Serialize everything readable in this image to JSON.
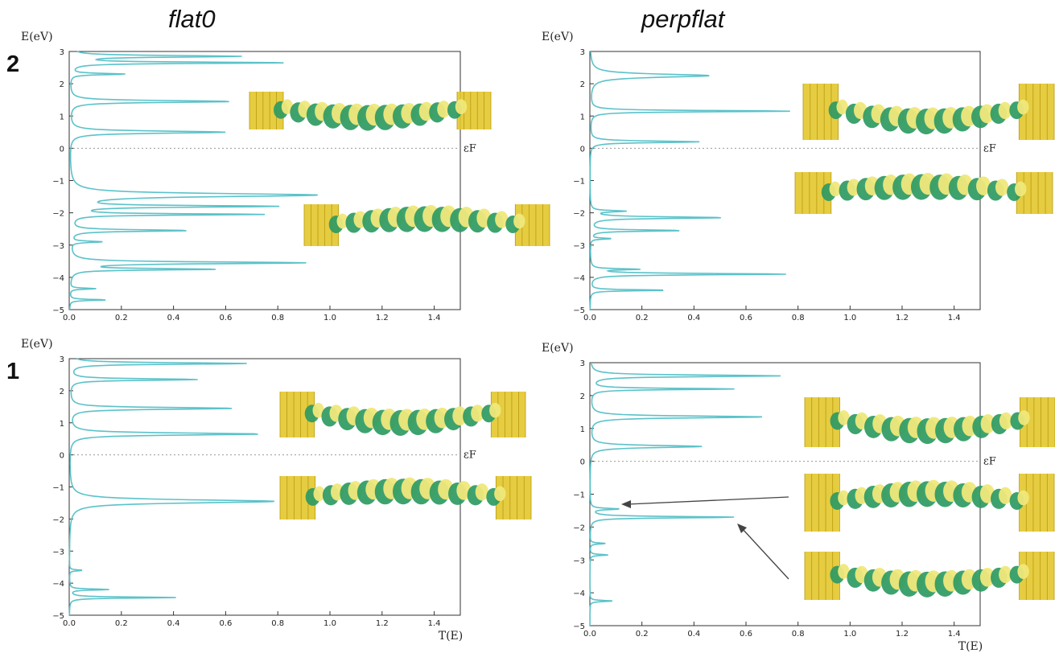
{
  "column_titles": [
    "flat0",
    "perpflat"
  ],
  "row_labels": [
    "2",
    "1"
  ],
  "colors": {
    "curve": "#5bc2c9",
    "axis": "#333333",
    "fermi_line": "#999999",
    "orbital_green": "#2e9a63",
    "orbital_yellow": "#efe87a",
    "electrode_gold": "#e3c62c"
  },
  "chart_data": [
    {
      "type": "line",
      "title": "flat0",
      "row": "2",
      "ylabel": "E(eV)",
      "xlabel": "",
      "fermi_label": "εF",
      "xlim": [
        0,
        1.5
      ],
      "ylim": [
        -5,
        3
      ],
      "xticks": [
        "0.0",
        "0.2",
        "0.4",
        "0.6",
        "0.8",
        "1.0",
        "1.2",
        "1.4"
      ],
      "yticks": [
        "−5",
        "−4",
        "−3",
        "−2",
        "−1",
        "0",
        "1",
        "2",
        "3"
      ],
      "grid": false,
      "peaks": [
        [
          2.85,
          0.65,
          0.06
        ],
        [
          2.65,
          0.83,
          0.05
        ],
        [
          2.3,
          0.21,
          0.05
        ],
        [
          1.45,
          0.62,
          0.07
        ],
        [
          0.5,
          0.6,
          0.08
        ],
        [
          -1.45,
          0.95,
          0.12
        ],
        [
          -1.8,
          0.77,
          0.06
        ],
        [
          -2.05,
          0.73,
          0.05
        ],
        [
          -2.55,
          0.45,
          0.06
        ],
        [
          -2.9,
          0.12,
          0.05
        ],
        [
          -3.55,
          0.9,
          0.07
        ],
        [
          -3.75,
          0.55,
          0.05
        ],
        [
          -4.35,
          0.1,
          0.04
        ],
        [
          -4.7,
          0.14,
          0.04
        ]
      ]
    },
    {
      "type": "line",
      "title": "perpflat",
      "row": "2",
      "ylabel": "E(eV)",
      "xlabel": "",
      "fermi_label": "εF",
      "xlim": [
        0,
        1.5
      ],
      "ylim": [
        -5,
        3
      ],
      "xticks": [
        "0.0",
        "0.2",
        "0.4",
        "0.6",
        "0.8",
        "1.0",
        "1.2",
        "1.4"
      ],
      "yticks": [
        "−5",
        "−4",
        "−3",
        "−2",
        "−1",
        "0",
        "1",
        "2",
        "3"
      ],
      "grid": false,
      "peaks": [
        [
          2.25,
          0.46,
          0.12
        ],
        [
          1.15,
          0.77,
          0.05
        ],
        [
          0.2,
          0.42,
          0.06
        ],
        [
          -1.95,
          0.13,
          0.05
        ],
        [
          -2.15,
          0.51,
          0.06
        ],
        [
          -2.55,
          0.35,
          0.05
        ],
        [
          -2.8,
          0.08,
          0.04
        ],
        [
          -3.75,
          0.18,
          0.04
        ],
        [
          -3.9,
          0.76,
          0.05
        ],
        [
          -4.4,
          0.3,
          0.04
        ]
      ]
    },
    {
      "type": "line",
      "title": "flat0",
      "row": "1",
      "ylabel": "E(eV)",
      "xlabel": "T(E)",
      "fermi_label": "εF",
      "xlim": [
        0,
        1.5
      ],
      "ylim": [
        -5,
        3
      ],
      "xticks": [
        "0.0",
        "0.2",
        "0.4",
        "0.6",
        "0.8",
        "1.0",
        "1.2",
        "1.4"
      ],
      "yticks": [
        "−5",
        "−4",
        "−3",
        "−2",
        "−1",
        "0",
        "1",
        "2",
        "3"
      ],
      "grid": false,
      "peaks": [
        [
          2.85,
          0.68,
          0.06
        ],
        [
          2.35,
          0.49,
          0.06
        ],
        [
          1.45,
          0.63,
          0.07
        ],
        [
          0.65,
          0.73,
          0.08
        ],
        [
          -1.45,
          0.79,
          0.12
        ],
        [
          -3.6,
          0.05,
          0.04
        ],
        [
          -4.2,
          0.15,
          0.04
        ],
        [
          -4.45,
          0.41,
          0.04
        ]
      ]
    },
    {
      "type": "line",
      "title": "perpflat",
      "row": "1",
      "ylabel": "E(eV)",
      "xlabel": "T(E)",
      "fermi_label": "εF",
      "xlim": [
        0,
        1.5
      ],
      "ylim": [
        -5,
        3
      ],
      "xticks": [
        "0.0",
        "0.2",
        "0.4",
        "0.6",
        "0.8",
        "1.0",
        "1.2",
        "1.4"
      ],
      "yticks": [
        "−5",
        "−4",
        "−3",
        "−2",
        "−1",
        "0",
        "1",
        "2",
        "3"
      ],
      "grid": false,
      "peaks": [
        [
          2.6,
          0.73,
          0.06
        ],
        [
          2.2,
          0.55,
          0.05
        ],
        [
          1.35,
          0.67,
          0.07
        ],
        [
          0.45,
          0.43,
          0.08
        ],
        [
          -1.45,
          0.11,
          0.05
        ],
        [
          -1.7,
          0.56,
          0.05
        ],
        [
          -2.5,
          0.06,
          0.04
        ],
        [
          -2.85,
          0.07,
          0.04
        ],
        [
          -4.25,
          0.09,
          0.04
        ]
      ]
    }
  ]
}
